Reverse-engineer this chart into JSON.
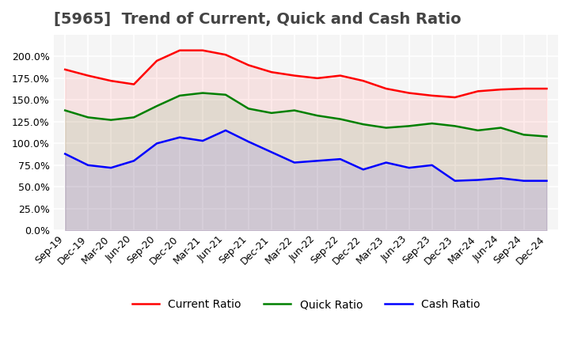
{
  "title": "[5965]  Trend of Current, Quick and Cash Ratio",
  "x_labels": [
    "Sep-19",
    "Dec-19",
    "Mar-20",
    "Jun-20",
    "Sep-20",
    "Dec-20",
    "Mar-21",
    "Jun-21",
    "Sep-21",
    "Dec-21",
    "Mar-22",
    "Jun-22",
    "Sep-22",
    "Dec-22",
    "Mar-23",
    "Jun-23",
    "Sep-23",
    "Dec-23",
    "Mar-24",
    "Jun-24",
    "Sep-24",
    "Dec-24"
  ],
  "current_ratio": [
    185,
    178,
    172,
    168,
    195,
    207,
    207,
    202,
    190,
    182,
    178,
    175,
    178,
    172,
    163,
    158,
    155,
    153,
    160,
    162,
    163,
    163
  ],
  "quick_ratio": [
    138,
    130,
    127,
    130,
    143,
    155,
    158,
    156,
    140,
    135,
    138,
    132,
    128,
    122,
    118,
    120,
    123,
    120,
    115,
    118,
    110,
    108
  ],
  "cash_ratio": [
    88,
    75,
    72,
    80,
    100,
    107,
    103,
    115,
    102,
    90,
    78,
    80,
    82,
    70,
    78,
    72,
    75,
    57,
    58,
    60,
    57,
    57
  ],
  "current_color": "#ff0000",
  "quick_color": "#008000",
  "cash_color": "#0000ff",
  "ylim": [
    0,
    225
  ],
  "yticks": [
    0,
    25,
    50,
    75,
    100,
    125,
    150,
    175,
    200
  ],
  "background_color": "#f5f5f5",
  "grid_color": "#ffffff",
  "title_fontsize": 14,
  "tick_fontsize": 9,
  "legend_fontsize": 10
}
